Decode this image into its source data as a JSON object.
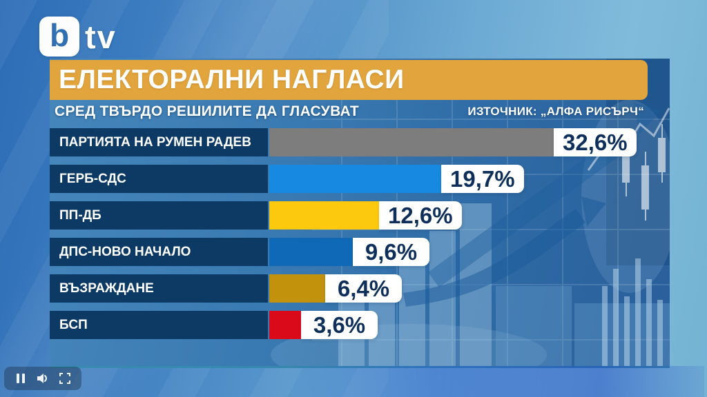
{
  "brand": {
    "logo_b": "b",
    "logo_tv": "tv"
  },
  "header": {
    "title": "ЕЛЕКТОРАЛНИ НАГЛАСИ"
  },
  "subtitle": "СРЕД ТВЪРДО РЕШИЛИТЕ ДА ГЛАСУВАТ",
  "source": "ИЗТОЧНИК: „АЛФА РИСЪРЧ“",
  "chart_data": {
    "type": "bar",
    "orientation": "horizontal",
    "title": "ЕЛЕКТОРАЛНИ НАГЛАСИ",
    "subtitle": "СРЕД ТВЪРДО РЕШИЛИТЕ ДА ГЛАСУВАТ",
    "source": "ИЗТОЧНИК: „АЛФА РИСЪРЧ“",
    "unit": "%",
    "xlim": [
      0,
      35
    ],
    "grid": false,
    "categories": [
      "ПАРТИЯТА НА РУМЕН РАДЕВ",
      "ГЕРБ-СДС",
      "ПП-ДБ",
      "ДПС-НОВО НАЧАЛО",
      "ВЪЗРАЖДАНЕ",
      "БСП"
    ],
    "values": [
      32.6,
      19.7,
      12.6,
      9.6,
      6.4,
      3.6
    ],
    "value_labels": [
      "32,6%",
      "19,7%",
      "12,6%",
      "9,6%",
      "6,4%",
      "3,6%"
    ],
    "bar_colors": [
      "#7d7d7d",
      "#1789e0",
      "#fdc90f",
      "#0f69b6",
      "#c3920c",
      "#da0a1a"
    ]
  },
  "colors": {
    "header_bar": "#e2a43c",
    "label_box": "#0d3a64",
    "value_text": "#0e2f5a",
    "panel_base": "#3578ae"
  },
  "player": {
    "icons": [
      "pause-icon",
      "volume-icon",
      "fullscreen-icon"
    ]
  }
}
